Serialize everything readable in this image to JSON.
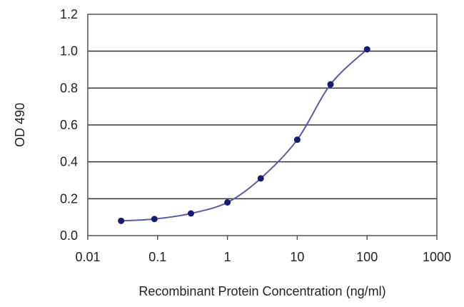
{
  "chart_data": {
    "type": "line",
    "title": "",
    "xlabel": "Recombinant Protein Concentration (ng/ml)",
    "ylabel": "OD 490",
    "x_scale": "log",
    "xlim": [
      0.01,
      1000
    ],
    "ylim": [
      0.0,
      1.2
    ],
    "x_ticks": [
      "0.01",
      "0.1",
      "1",
      "10",
      "100",
      "1000"
    ],
    "y_ticks": [
      "0.0",
      "0.2",
      "0.4",
      "0.6",
      "0.8",
      "1.0",
      "1.2"
    ],
    "grid": "horizontal",
    "legend": "none",
    "series": [
      {
        "color": "#5a5aa8",
        "marker_color": "#1a1a6e",
        "x": [
          0.03,
          0.09,
          0.3,
          1,
          3,
          10,
          30,
          100
        ],
        "y": [
          0.08,
          0.09,
          0.12,
          0.18,
          0.31,
          0.52,
          0.82,
          1.01
        ]
      }
    ]
  }
}
